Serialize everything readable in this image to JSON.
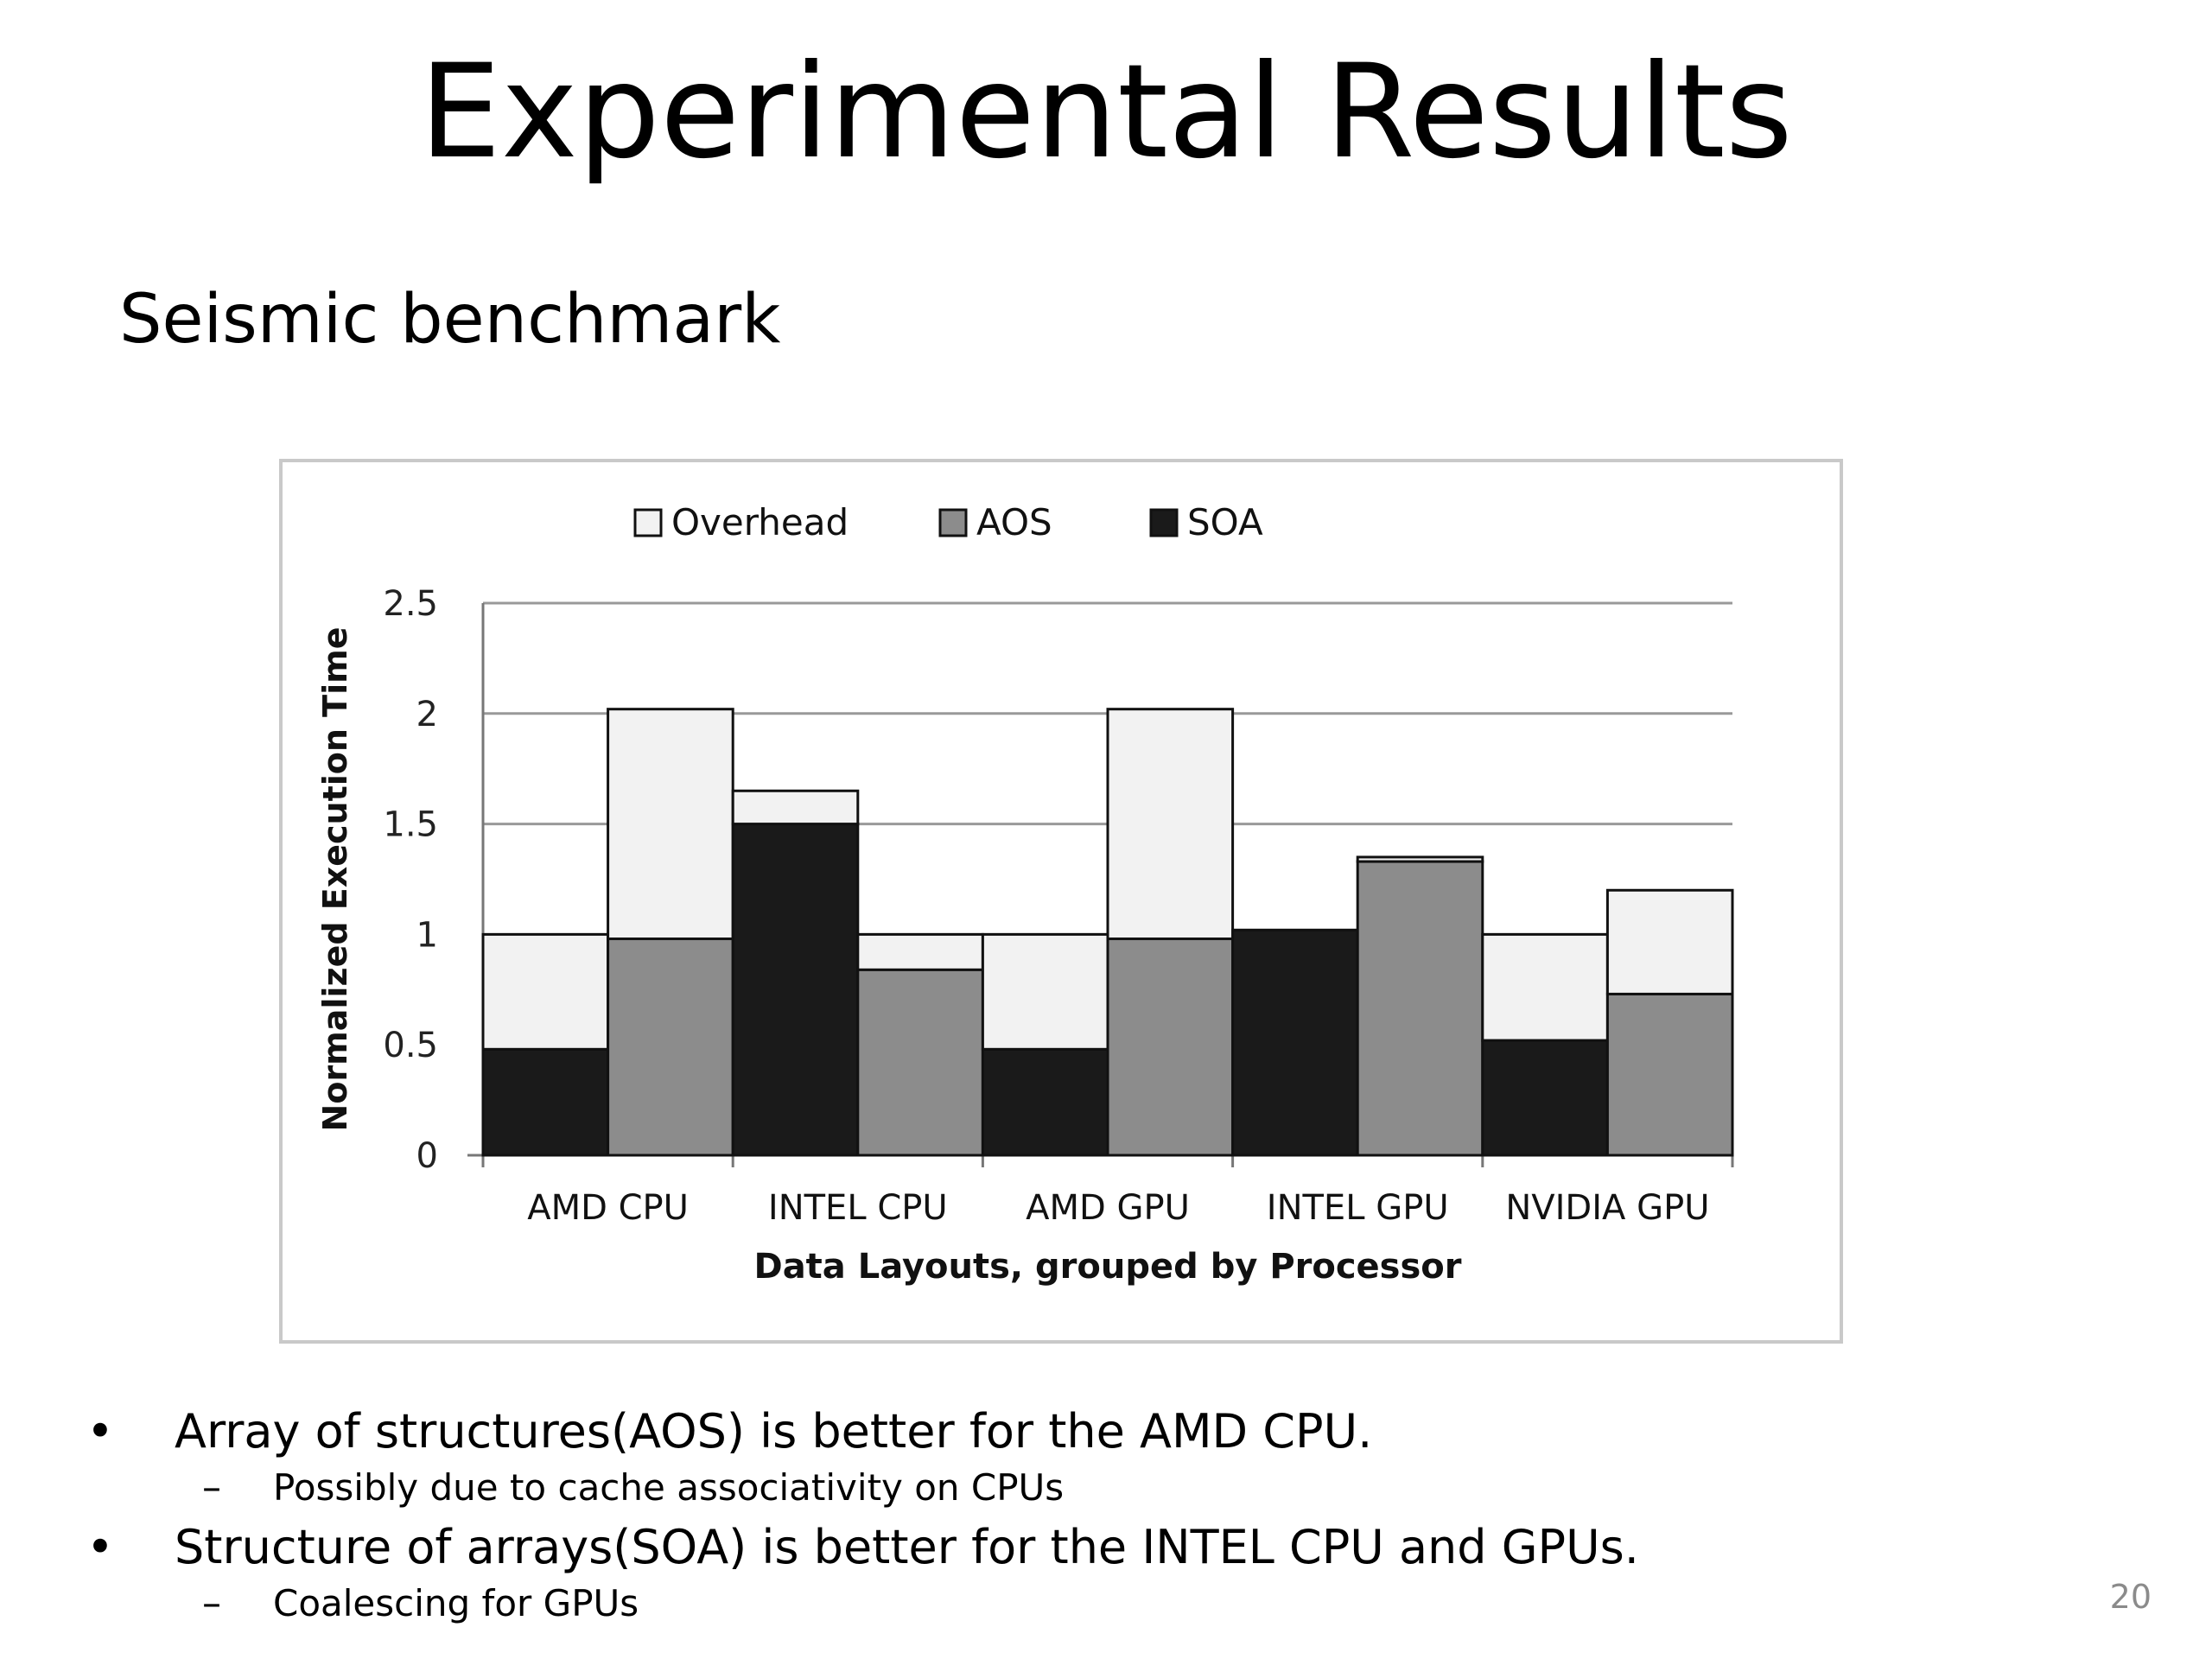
{
  "slide": {
    "title": "Experimental Results",
    "subtitle": "Seismic benchmark",
    "page_number": "20"
  },
  "bullets": [
    {
      "marker": "•",
      "text": "Array of structures(AOS) is better for the AMD CPU.",
      "sub": {
        "marker": "–",
        "text": "Possibly due to cache associativity on CPUs"
      }
    },
    {
      "marker": "•",
      "text": "Structure of arrays(SOA) is better for the INTEL CPU and GPUs.",
      "sub": {
        "marker": "–",
        "text": "Coalescing for GPUs"
      }
    }
  ],
  "chart_data": {
    "type": "bar",
    "stacked": true,
    "xlabel": "Data Layouts, grouped by Processor",
    "ylabel": "Normalized Execution Time",
    "ylim": [
      0,
      2.5
    ],
    "yticks": [
      "0",
      "0.5",
      "1",
      "1.5",
      "2",
      "2.5"
    ],
    "categories": [
      "AMD CPU",
      "INTEL CPU",
      "AMD GPU",
      "INTEL GPU",
      "NVIDIA GPU"
    ],
    "legend": [
      "Overhead",
      "AOS",
      "SOA"
    ],
    "legend_position": "top",
    "grid": true,
    "colors": {
      "Overhead": "#f2f2f2",
      "AOS": "#8c8c8c",
      "SOA": "#1a1a1a",
      "frame": "#c9c9c9",
      "grid": "#999999"
    },
    "bars": [
      {
        "category": "AMD CPU",
        "layout": "SOA",
        "base": 0.48,
        "overhead": 0.52
      },
      {
        "category": "AMD CPU",
        "layout": "AOS",
        "base": 0.98,
        "overhead": 1.04
      },
      {
        "category": "INTEL CPU",
        "layout": "SOA",
        "base": 1.5,
        "overhead": 0.15
      },
      {
        "category": "INTEL CPU",
        "layout": "AOS",
        "base": 0.84,
        "overhead": 0.16
      },
      {
        "category": "AMD GPU",
        "layout": "SOA",
        "base": 0.48,
        "overhead": 0.52
      },
      {
        "category": "AMD GPU",
        "layout": "AOS",
        "base": 0.98,
        "overhead": 1.04
      },
      {
        "category": "INTEL GPU",
        "layout": "SOA",
        "base": 1.02,
        "overhead": 0.0
      },
      {
        "category": "INTEL GPU",
        "layout": "AOS",
        "base": 1.33,
        "overhead": 0.02
      },
      {
        "category": "NVIDIA GPU",
        "layout": "SOA",
        "base": 0.52,
        "overhead": 0.48
      },
      {
        "category": "NVIDIA GPU",
        "layout": "AOS",
        "base": 0.73,
        "overhead": 0.47
      }
    ]
  }
}
